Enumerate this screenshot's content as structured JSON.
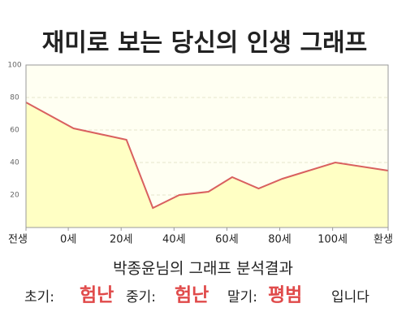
{
  "chart_data": {
    "type": "area",
    "title": "재미로 보는 당신의 인생 그래프",
    "x": [
      -16,
      2,
      22,
      32,
      42,
      53,
      62,
      72,
      81,
      91,
      101,
      121
    ],
    "series": [
      {
        "color": "#d9605f",
        "values": [
          77,
          61,
          54,
          12,
          20,
          22,
          31,
          24,
          30,
          35,
          40,
          35
        ]
      }
    ],
    "fill": "#ffffc4",
    "xlim": [
      -16,
      121
    ],
    "xticks": [
      {
        "value": -16,
        "label": "전생"
      },
      {
        "value": 0,
        "label": "0세"
      },
      {
        "value": 20,
        "label": "20세"
      },
      {
        "value": 40,
        "label": "40세"
      },
      {
        "value": 60,
        "label": "60세"
      },
      {
        "value": 80,
        "label": "80세"
      },
      {
        "value": 100,
        "label": "100세"
      },
      {
        "value": 121,
        "label": "환생"
      }
    ],
    "ylim": [
      0,
      100
    ],
    "yticks": [
      20,
      40,
      60,
      80,
      100
    ],
    "grid": true
  },
  "result": {
    "title": "박종윤님의 그래프 분석결과",
    "items": [
      {
        "label": "초기:",
        "value": "험난"
      },
      {
        "label": "중기:",
        "value": "험난"
      },
      {
        "label": "말기:",
        "value": "평범"
      }
    ],
    "ending": "입니다"
  }
}
